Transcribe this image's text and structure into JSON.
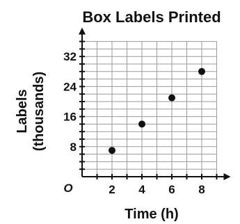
{
  "chart_data": {
    "type": "scatter",
    "title": "Box Labels Printed",
    "xlabel": "Time (h)",
    "ylabel_line1": "Labels",
    "ylabel_line2": "(thousands)",
    "origin_label": "O",
    "xlim": [
      0,
      9
    ],
    "ylim": [
      0,
      36
    ],
    "x_ticks": [
      2,
      4,
      6,
      8
    ],
    "y_ticks": [
      8,
      16,
      24,
      32
    ],
    "grid": true,
    "points": [
      {
        "x": 2,
        "y": 7
      },
      {
        "x": 4,
        "y": 14
      },
      {
        "x": 6,
        "y": 21
      },
      {
        "x": 8,
        "y": 28
      }
    ]
  }
}
